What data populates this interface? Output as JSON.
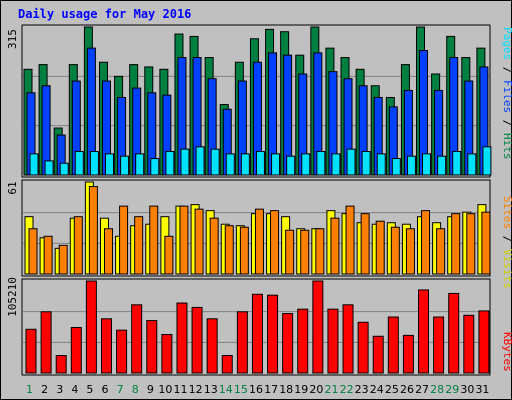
{
  "chart_data": [
    {
      "type": "bar",
      "title": "Daily usage for May 2016",
      "categories": [
        "1",
        "2",
        "3",
        "4",
        "5",
        "6",
        "7",
        "8",
        "9",
        "10",
        "11",
        "12",
        "13",
        "14",
        "15",
        "16",
        "17",
        "18",
        "19",
        "20",
        "21",
        "22",
        "23",
        "24",
        "25",
        "26",
        "27",
        "28",
        "29",
        "30",
        "31"
      ],
      "weekend_days": [
        "1",
        "7",
        "8",
        "14",
        "15",
        "21",
        "22",
        "28",
        "29"
      ],
      "y_max_label": "315",
      "ylabel_parts": [
        "Pages",
        "Files",
        "Hits"
      ],
      "series": [
        {
          "name": "Hits",
          "color": "#008040",
          "values": [
            225,
            235,
            100,
            235,
            315,
            240,
            210,
            235,
            230,
            225,
            300,
            295,
            250,
            150,
            240,
            290,
            310,
            305,
            255,
            315,
            270,
            250,
            225,
            190,
            165,
            235,
            315,
            215,
            295,
            250,
            270
          ]
        },
        {
          "name": "Files",
          "color": "#0040ff",
          "values": [
            175,
            190,
            85,
            200,
            270,
            200,
            165,
            185,
            175,
            170,
            250,
            250,
            205,
            140,
            200,
            240,
            260,
            255,
            215,
            260,
            220,
            205,
            190,
            165,
            145,
            180,
            265,
            180,
            250,
            200,
            230
          ]
        },
        {
          "name": "Pages",
          "color": "#00e0ff",
          "values": [
            45,
            30,
            25,
            50,
            50,
            45,
            40,
            45,
            35,
            50,
            55,
            60,
            55,
            45,
            45,
            50,
            45,
            40,
            45,
            50,
            45,
            55,
            50,
            45,
            35,
            40,
            45,
            40,
            50,
            45,
            60
          ]
        }
      ]
    },
    {
      "type": "bar",
      "y_max_label": "61",
      "ylabel_parts": [
        "Sites",
        "Visits"
      ],
      "series": [
        {
          "name": "Visits",
          "color": "#ffff00",
          "values": [
            38,
            24,
            17,
            37,
            61,
            37,
            25,
            32,
            33,
            38,
            45,
            46,
            42,
            33,
            32,
            40,
            40,
            38,
            30,
            30,
            42,
            40,
            34,
            33,
            34,
            33,
            38,
            34,
            38,
            41,
            46
          ]
        },
        {
          "name": "Sites",
          "color": "#ff8000",
          "values": [
            30,
            25,
            19,
            38,
            58,
            30,
            45,
            38,
            45,
            25,
            45,
            43,
            37,
            32,
            31,
            43,
            42,
            29,
            29,
            30,
            37,
            45,
            40,
            35,
            31,
            30,
            42,
            30,
            40,
            40,
            41
          ]
        }
      ]
    },
    {
      "type": "bar",
      "y_max_label": "105210",
      "ylabel": "KBytes",
      "series": [
        {
          "name": "KBytes",
          "color": "#ff0000",
          "values": [
            50000,
            70000,
            20000,
            52000,
            105210,
            62000,
            49000,
            78000,
            60000,
            44000,
            80000,
            75000,
            62000,
            20000,
            70000,
            90000,
            89000,
            68000,
            73000,
            105210,
            73000,
            78000,
            58000,
            42000,
            64000,
            43000,
            95000,
            64000,
            91000,
            66000,
            71000
          ]
        }
      ]
    }
  ]
}
